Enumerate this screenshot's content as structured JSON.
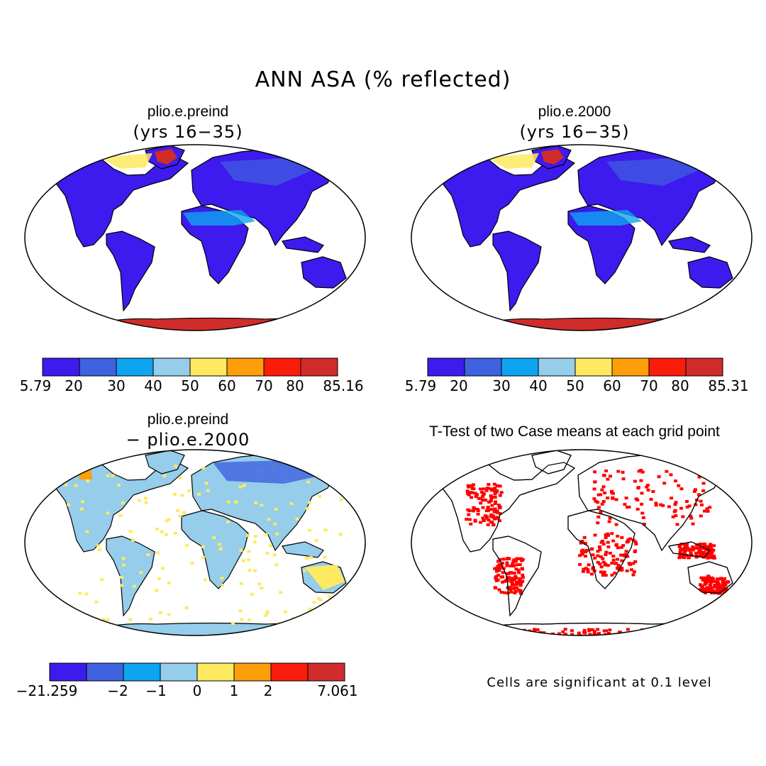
{
  "title": "ANN ASA (% reflected)",
  "panels": [
    {
      "title": "plio.e.preind",
      "subtitle": "(yrs 16−35)",
      "colorbar": {
        "colors": [
          "#3d1aee",
          "#3f62e0",
          "#0ea5f0",
          "#95cdea",
          "#fdea60",
          "#fd9e0a",
          "#fc1c0a",
          "#d02c2a"
        ],
        "labels": [
          "5.79",
          "20",
          "30",
          "40",
          "50",
          "60",
          "70",
          "80",
          "85.16"
        ]
      }
    },
    {
      "title": "plio.e.2000",
      "subtitle": "(yrs 16−35)",
      "colorbar": {
        "colors": [
          "#3d1aee",
          "#3f62e0",
          "#0ea5f0",
          "#95cdea",
          "#fdea60",
          "#fd9e0a",
          "#fc1c0a",
          "#d02c2a"
        ],
        "labels": [
          "5.79",
          "20",
          "30",
          "40",
          "50",
          "60",
          "70",
          "80",
          "85.31"
        ]
      }
    },
    {
      "title": "plio.e.preind",
      "subtitle": "− plio.e.2000",
      "colorbar": {
        "colors": [
          "#3d1aee",
          "#3f62e0",
          "#0ea5f0",
          "#95cdea",
          "#fdea60",
          "#fd9e0a",
          "#fc1c0a",
          "#d02c2a"
        ],
        "labels": [
          "−21.259",
          "−2",
          "−1",
          "0",
          "1",
          "2",
          "7.061"
        ]
      }
    },
    {
      "title": "T-Test of two Case means at each grid point",
      "note": "Cells are significant at 0.1 level"
    }
  ],
  "colors": {
    "land": "#3d1aee",
    "ice": "#d02c2a",
    "diff_land": "#95cdea",
    "signif": "#ff0000",
    "outline": "#000000"
  }
}
